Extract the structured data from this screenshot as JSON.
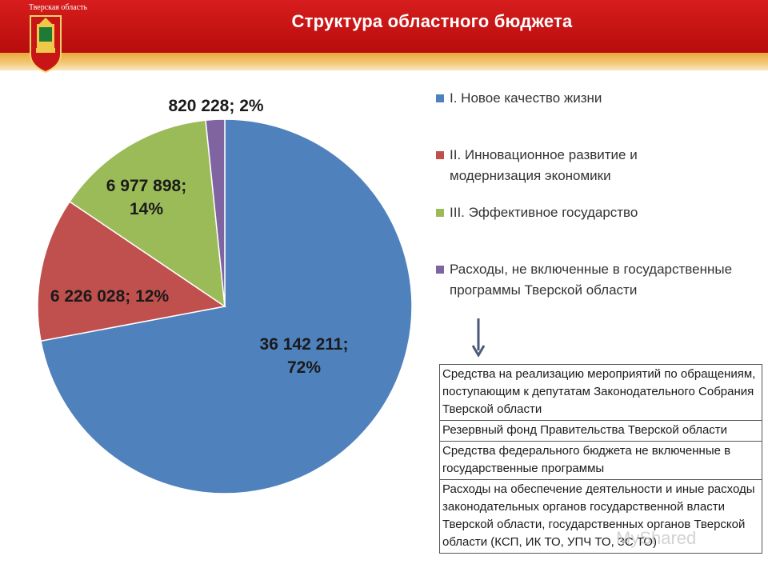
{
  "header": {
    "region_label": "Тверская область",
    "title": "Структура областного бюджета",
    "colors": {
      "bar": "#cc1111",
      "strip": "#f0b54e"
    }
  },
  "chart_data": {
    "type": "pie",
    "title": "",
    "slices": [
      {
        "label": "I. Новое качество жизни",
        "value": 36142211,
        "percent": 72,
        "value_text": "36 142 211;",
        "percent_text": "72%",
        "color": "#4f81bd"
      },
      {
        "label": "II. Инновационное развитие и модернизация экономики",
        "value": 6226028,
        "percent": 12,
        "value_text": "6 226 028; 12%",
        "percent_text": "",
        "color": "#c0504d"
      },
      {
        "label": "III. Эффективное государство",
        "value": 6977898,
        "percent": 14,
        "value_text": "6 977 898;",
        "percent_text": "14%",
        "color": "#9bbb59"
      },
      {
        "label": "Расходы, не включенные в государственные программы Тверской области",
        "value": 820228,
        "percent": 2,
        "value_text": "820 228; 2%",
        "percent_text": "",
        "color": "#8064a2"
      }
    ],
    "legend_position": "right"
  },
  "legend": {
    "items": [
      "I. Новое качество жизни",
      "II. Инновационное развитие и модернизация экономики",
      "III. Эффективное государство",
      "Расходы, не включенные в государственные программы Тверской области"
    ]
  },
  "breakdown": {
    "rows": [
      "Средства на реализацию мероприятий по обращениям, поступающим к депутатам Законодательного Собрания Тверской области",
      "Резервный фонд Правительства Тверской области",
      "Средства федерального бюджета не включенные в государственные программы",
      "Расходы на обеспечение деятельности и иные расходы законодательных органов государственной власти Тверской области, государственных органов Тверской области (КСП, ИК ТО, УПЧ ТО, ЗС ТО)"
    ]
  },
  "watermark": "MyShared",
  "icons": {
    "emblem": "coat-of-arms-icon",
    "arrow": "arrow-down-icon"
  }
}
